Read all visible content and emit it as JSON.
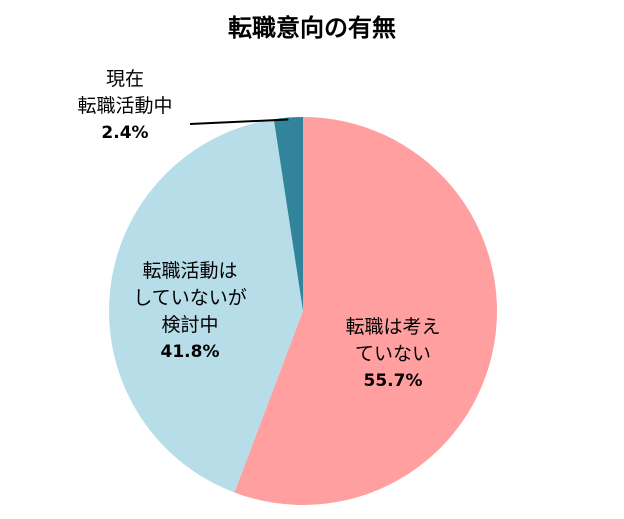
{
  "chart_data": {
    "type": "pie",
    "title": "転職意向の有無",
    "start": "top",
    "direction": "clockwise",
    "slices": [
      {
        "label_lines": [
          "転職は考え",
          "ていない"
        ],
        "value": 55.7,
        "value_label": "55.7%",
        "color": "#FF9F9F"
      },
      {
        "label_lines": [
          "転職活動は",
          "していないが",
          "検討中"
        ],
        "value": 41.8,
        "value_label": "41.8%",
        "color": "#B7DDE8"
      },
      {
        "label_lines": [
          "現在",
          "転職活動中"
        ],
        "value": 2.4,
        "value_label": "2.4%",
        "color": "#31849B"
      }
    ]
  }
}
